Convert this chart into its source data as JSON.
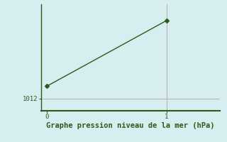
{
  "x": [
    0,
    1
  ],
  "y": [
    1013.5,
    1021.5
  ],
  "line_color": "#2d5a1b",
  "marker": "D",
  "marker_size": 3,
  "bg_color": "#d6eef0",
  "ytick_label": "1012",
  "ytick_value": 1012,
  "xtick_labels": [
    "0",
    "1"
  ],
  "xtick_values": [
    0,
    1
  ],
  "xlabel": "Graphe pression niveau de la mer (hPa)",
  "xlabel_color": "#2d5a1b",
  "xlabel_fontsize": 7.5,
  "axis_color": "#2d5a1b",
  "tick_color": "#2d5a1b",
  "ylim": [
    1010.5,
    1023.5
  ],
  "xlim": [
    -0.05,
    1.45
  ],
  "vline_color": "#c0aaaa",
  "hline_color": "#c0aaaa",
  "spine_color": "#2d5a1b",
  "linewidth": 1.0
}
